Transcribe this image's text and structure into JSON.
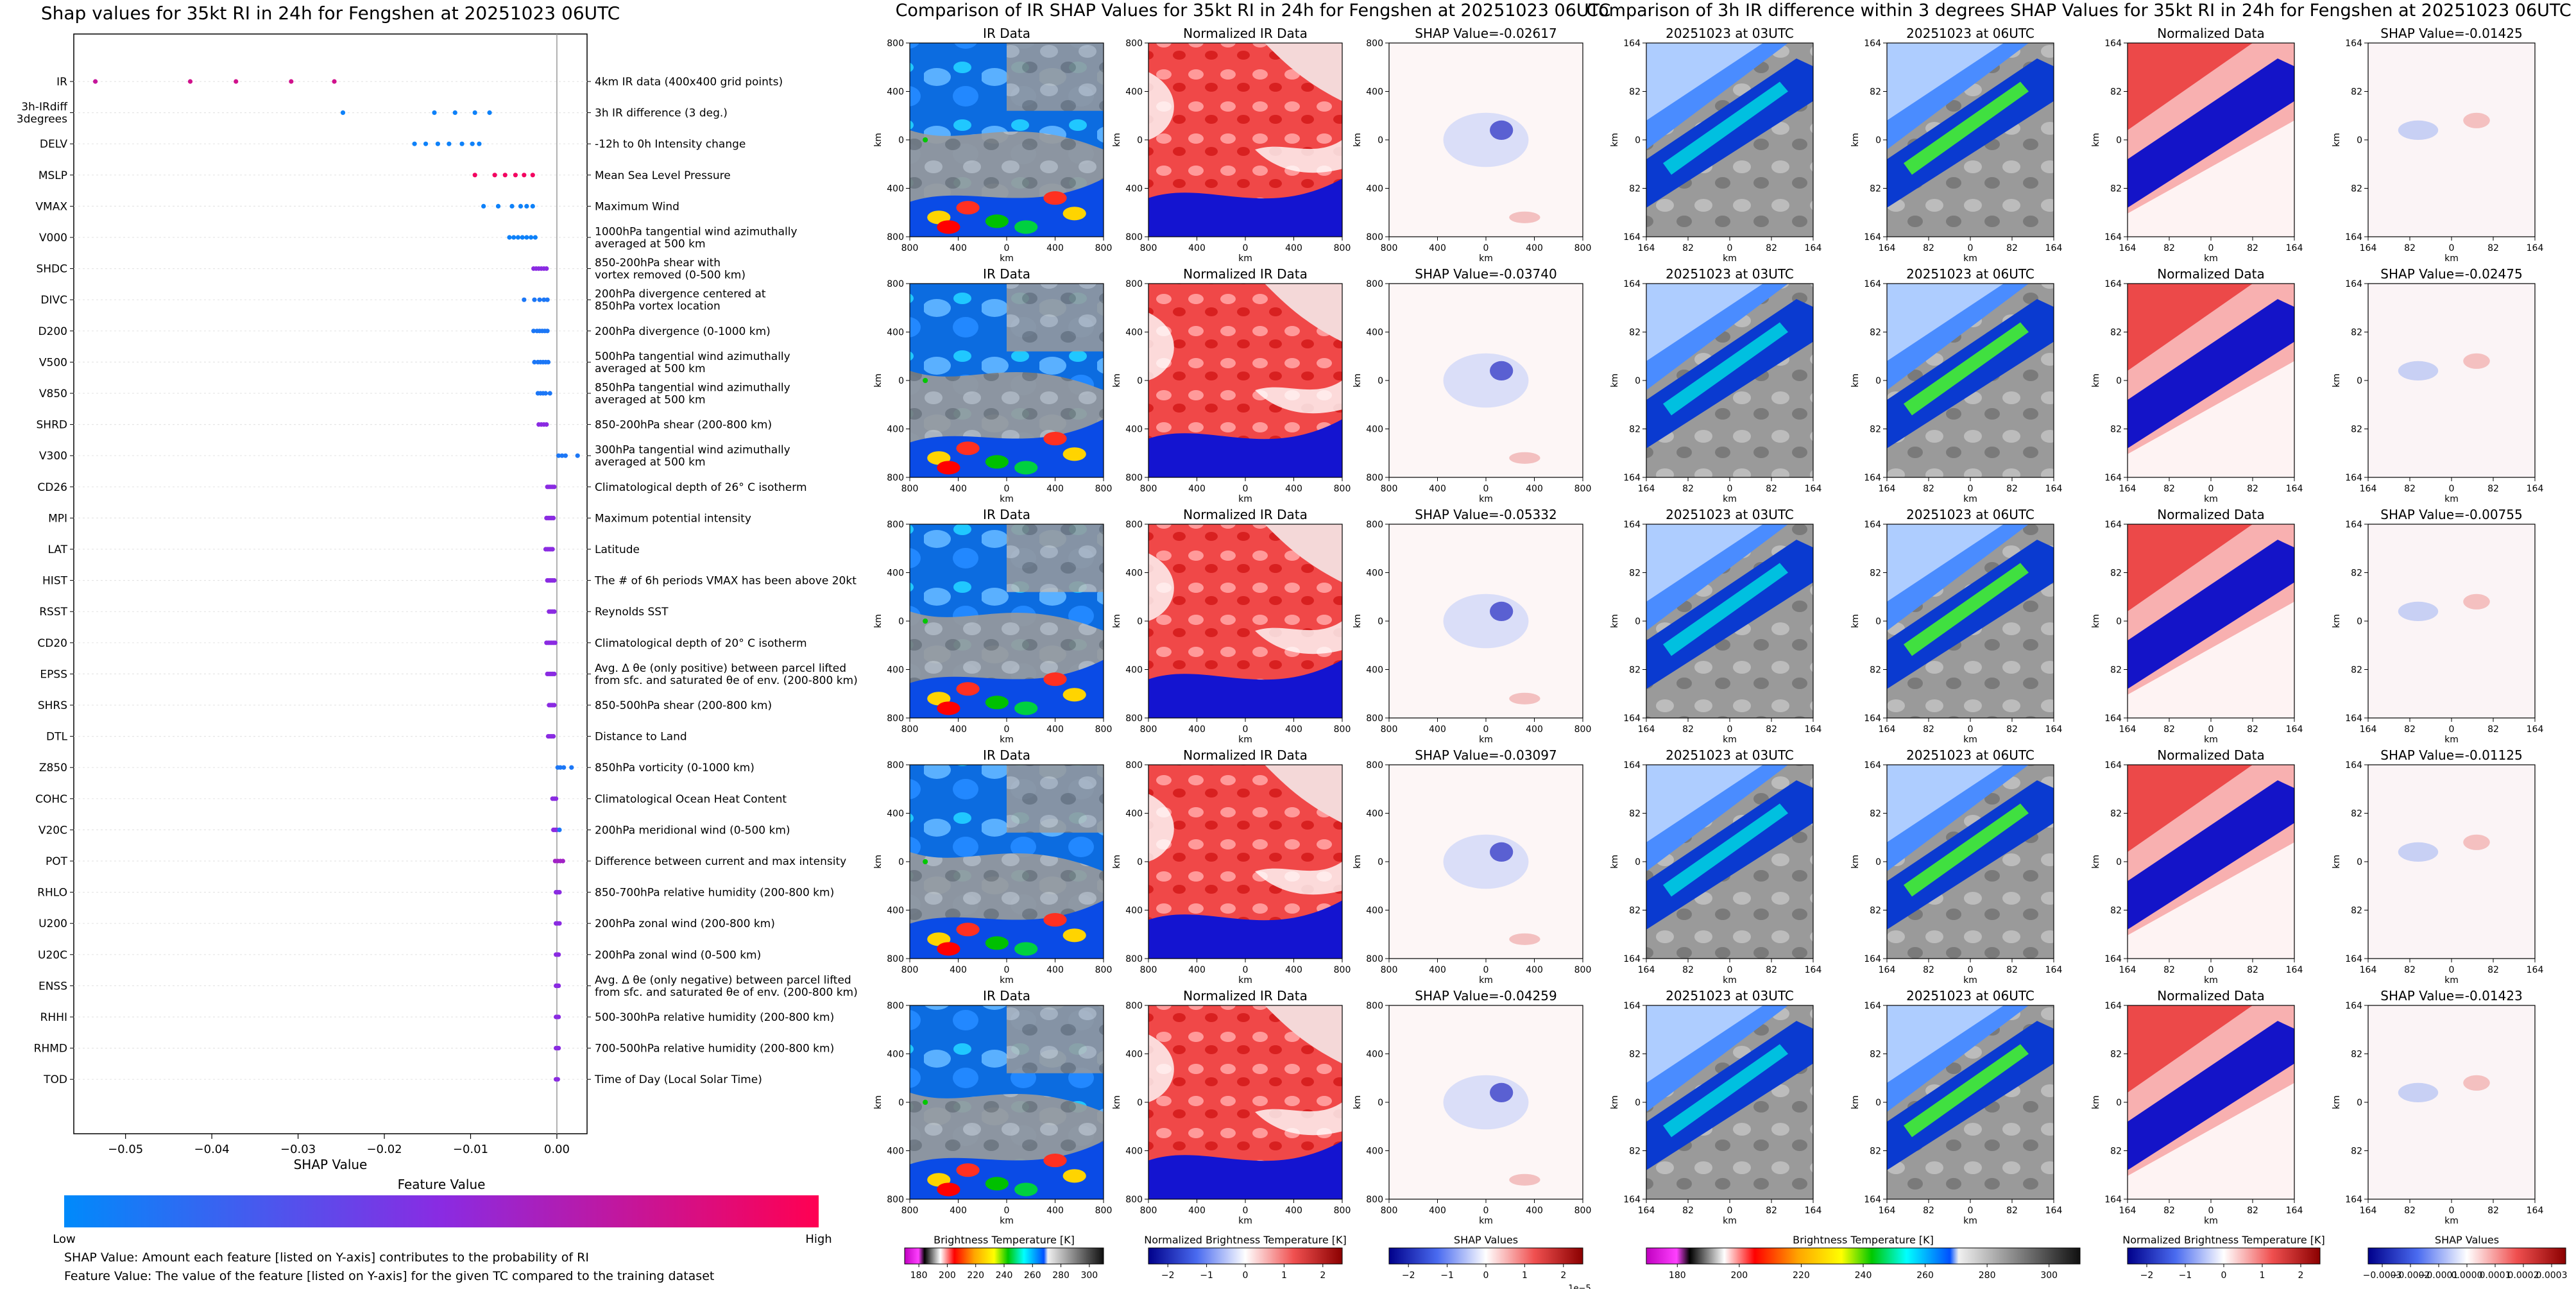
{
  "colors": {
    "feature_low": "#1e88e5",
    "feature_high": "#ff0d57",
    "ir_blue": "#0a4be6",
    "red": "#dd1010",
    "blue": "#1010cc",
    "grid": "#cccccc"
  },
  "left_panel": {
    "title": "Shap values for 35kt RI in 24h for Fengshen at 20251023 06UTC",
    "xlabel": "SHAP Value",
    "colorbar_title": "Feature Value",
    "colorbar_low": "Low",
    "colorbar_high": "High",
    "note1": "SHAP Value: Amount each feature [listed on Y-axis] contributes to the probability of RI",
    "note2": "Feature Value: The value of the feature [listed on Y-axis] for the given TC compared to the training dataset"
  },
  "chart_data": [
    {
      "type": "scatter",
      "title": "Shap values for 35kt RI in 24h for Fengshen at 20251023 06UTC",
      "xlabel": "SHAP Value",
      "xlim": [
        -0.056,
        0.0035
      ],
      "xticks": [
        -0.05,
        -0.04,
        -0.03,
        -0.02,
        -0.01,
        0.0
      ],
      "xtick_labels": [
        "−0.05",
        "−0.04",
        "−0.03",
        "−0.02",
        "−0.01",
        "0.00"
      ],
      "features": [
        {
          "name": "IR",
          "desc": [
            "4km IR data (400x400 grid points)"
          ],
          "points": [
            [
              -0.0535,
              0.75
            ],
            [
              -0.0425,
              0.8
            ],
            [
              -0.0372,
              0.8
            ],
            [
              -0.0308,
              0.8
            ],
            [
              -0.0258,
              0.8
            ]
          ]
        },
        {
          "name": "3h-IRdiff\n3degrees",
          "desc": [
            "3h IR difference (3 deg.)"
          ],
          "points": [
            [
              -0.0248,
              0.05
            ],
            [
              -0.0142,
              0.05
            ],
            [
              -0.0118,
              0.05
            ],
            [
              -0.0095,
              0.05
            ],
            [
              -0.0078,
              0.05
            ]
          ]
        },
        {
          "name": "DELV",
          "desc": [
            "-12h to 0h Intensity change"
          ],
          "points": [
            [
              -0.0165,
              0.05
            ],
            [
              -0.0152,
              0.05
            ],
            [
              -0.0138,
              0.05
            ],
            [
              -0.0125,
              0.05
            ],
            [
              -0.011,
              0.05
            ],
            [
              -0.0098,
              0.05
            ],
            [
              -0.009,
              0.05
            ]
          ]
        },
        {
          "name": "MSLP",
          "desc": [
            "Mean Sea Level Pressure"
          ],
          "points": [
            [
              -0.0095,
              0.95
            ],
            [
              -0.0072,
              0.95
            ],
            [
              -0.006,
              0.95
            ],
            [
              -0.0048,
              0.95
            ],
            [
              -0.0038,
              0.95
            ],
            [
              -0.0028,
              0.95
            ]
          ]
        },
        {
          "name": "VMAX",
          "desc": [
            "Maximum Wind"
          ],
          "points": [
            [
              -0.0085,
              0.05
            ],
            [
              -0.0068,
              0.05
            ],
            [
              -0.0052,
              0.05
            ],
            [
              -0.0042,
              0.05
            ],
            [
              -0.0035,
              0.05
            ],
            [
              -0.0028,
              0.05
            ]
          ]
        },
        {
          "name": "V000",
          "desc": [
            "1000hPa tangential wind azimuthally",
            "averaged at 500 km"
          ],
          "points": [
            [
              -0.0055,
              0.05
            ],
            [
              -0.005,
              0.05
            ],
            [
              -0.0045,
              0.05
            ],
            [
              -0.004,
              0.05
            ],
            [
              -0.0035,
              0.05
            ],
            [
              -0.003,
              0.05
            ],
            [
              -0.0025,
              0.05
            ]
          ]
        },
        {
          "name": "SHDC",
          "desc": [
            "850-200hPa shear with",
            "vortex removed (0-500 km)"
          ],
          "points": [
            [
              -0.0027,
              0.5
            ],
            [
              -0.0024,
              0.5
            ],
            [
              -0.0021,
              0.5
            ],
            [
              -0.0018,
              0.5
            ],
            [
              -0.0015,
              0.5
            ],
            [
              -0.0012,
              0.5
            ]
          ]
        },
        {
          "name": "DIVC",
          "desc": [
            "200hPa divergence centered at",
            "850hPa vortex location"
          ],
          "points": [
            [
              -0.0038,
              0.1
            ],
            [
              -0.0026,
              0.1
            ],
            [
              -0.002,
              0.1
            ],
            [
              -0.0015,
              0.1
            ],
            [
              -0.0011,
              0.1
            ]
          ]
        },
        {
          "name": "D200",
          "desc": [
            "200hPa divergence (0-1000 km)"
          ],
          "points": [
            [
              -0.0027,
              0.1
            ],
            [
              -0.0023,
              0.1
            ],
            [
              -0.002,
              0.1
            ],
            [
              -0.0017,
              0.1
            ],
            [
              -0.0014,
              0.1
            ],
            [
              -0.0011,
              0.1
            ]
          ]
        },
        {
          "name": "V500",
          "desc": [
            "500hPa tangential wind azimuthally",
            "averaged at 500 km"
          ],
          "points": [
            [
              -0.0026,
              0.1
            ],
            [
              -0.0022,
              0.1
            ],
            [
              -0.0019,
              0.1
            ],
            [
              -0.0016,
              0.1
            ],
            [
              -0.0013,
              0.1
            ],
            [
              -0.001,
              0.1
            ]
          ]
        },
        {
          "name": "V850",
          "desc": [
            "850hPa tangential wind azimuthally",
            "averaged at 500 km"
          ],
          "points": [
            [
              -0.0022,
              0.1
            ],
            [
              -0.0019,
              0.1
            ],
            [
              -0.0016,
              0.1
            ],
            [
              -0.0013,
              0.1
            ],
            [
              -0.0008,
              0.1
            ]
          ]
        },
        {
          "name": "SHRD",
          "desc": [
            "850-200hPa shear (200-800 km)"
          ],
          "points": [
            [
              -0.0021,
              0.5
            ],
            [
              -0.0018,
              0.5
            ],
            [
              -0.0015,
              0.5
            ],
            [
              -0.0012,
              0.5
            ]
          ]
        },
        {
          "name": "V300",
          "desc": [
            "300hPa tangential wind azimuthally",
            "averaged at 500 km"
          ],
          "points": [
            [
              0.0002,
              0.1
            ],
            [
              0.0006,
              0.1
            ],
            [
              0.001,
              0.1
            ],
            [
              0.0024,
              0.1
            ]
          ]
        },
        {
          "name": "CD26",
          "desc": [
            "Climatological depth of 26° C isotherm"
          ],
          "points": [
            [
              -0.0011,
              0.5
            ],
            [
              -0.0009,
              0.5
            ],
            [
              -0.0007,
              0.5
            ],
            [
              -0.0005,
              0.5
            ],
            [
              -0.0003,
              0.5
            ]
          ]
        },
        {
          "name": "MPI",
          "desc": [
            "Maximum potential intensity"
          ],
          "points": [
            [
              -0.0012,
              0.5
            ],
            [
              -0.001,
              0.5
            ],
            [
              -0.0008,
              0.5
            ],
            [
              -0.0006,
              0.5
            ],
            [
              -0.0004,
              0.5
            ]
          ]
        },
        {
          "name": "LAT",
          "desc": [
            "Latitude"
          ],
          "points": [
            [
              -0.0013,
              0.5
            ],
            [
              -0.0011,
              0.5
            ],
            [
              -0.0009,
              0.5
            ],
            [
              -0.0007,
              0.5
            ],
            [
              -0.0005,
              0.5
            ]
          ]
        },
        {
          "name": "HIST",
          "desc": [
            "The # of 6h periods VMAX has been above 20kt"
          ],
          "points": [
            [
              -0.0011,
              0.5
            ],
            [
              -0.0009,
              0.5
            ],
            [
              -0.0007,
              0.5
            ],
            [
              -0.0005,
              0.5
            ],
            [
              -0.0003,
              0.5
            ]
          ]
        },
        {
          "name": "RSST",
          "desc": [
            "Reynolds SST"
          ],
          "points": [
            [
              -0.0009,
              0.5
            ],
            [
              -0.0007,
              0.5
            ],
            [
              -0.0005,
              0.5
            ],
            [
              -0.0003,
              0.5
            ]
          ]
        },
        {
          "name": "CD20",
          "desc": [
            "Climatological depth of 20° C isotherm"
          ],
          "points": [
            [
              -0.0012,
              0.5
            ],
            [
              -0.001,
              0.5
            ],
            [
              -0.0008,
              0.5
            ],
            [
              -0.0006,
              0.5
            ],
            [
              -0.0004,
              0.5
            ],
            [
              -0.0002,
              0.5
            ]
          ]
        },
        {
          "name": "EPSS",
          "desc": [
            "Avg. Δ θe (only positive) between parcel lifted",
            "from sfc. and saturated θe of env. (200-800 km)"
          ],
          "points": [
            [
              -0.0011,
              0.5
            ],
            [
              -0.0009,
              0.5
            ],
            [
              -0.0007,
              0.5
            ],
            [
              -0.0005,
              0.5
            ],
            [
              -0.0003,
              0.5
            ]
          ]
        },
        {
          "name": "SHRS",
          "desc": [
            "850-500hPa shear (200-800 km)"
          ],
          "points": [
            [
              -0.0009,
              0.5
            ],
            [
              -0.0007,
              0.5
            ],
            [
              -0.0005,
              0.5
            ],
            [
              -0.0003,
              0.5
            ]
          ]
        },
        {
          "name": "DTL",
          "desc": [
            "Distance to Land"
          ],
          "points": [
            [
              -0.001,
              0.5
            ],
            [
              -0.0008,
              0.5
            ],
            [
              -0.0006,
              0.5
            ],
            [
              -0.0004,
              0.5
            ]
          ]
        },
        {
          "name": "Z850",
          "desc": [
            "850hPa vorticity (0-1000 km)"
          ],
          "points": [
            [
              0.0001,
              0.1
            ],
            [
              0.0004,
              0.1
            ],
            [
              0.0008,
              0.1
            ],
            [
              0.0017,
              0.1
            ]
          ]
        },
        {
          "name": "COHC",
          "desc": [
            "Climatological Ocean Heat Content"
          ],
          "points": [
            [
              -0.0005,
              0.5
            ],
            [
              -0.0003,
              0.5
            ],
            [
              -0.0001,
              0.5
            ]
          ]
        },
        {
          "name": "V20C",
          "desc": [
            "200hPa meridional wind (0-500 km)"
          ],
          "points": [
            [
              -0.0004,
              0.5
            ],
            [
              -0.0002,
              0.5
            ],
            [
              0.0,
              0.5
            ],
            [
              0.0003,
              0.1
            ]
          ]
        },
        {
          "name": "POT",
          "desc": [
            "Difference between current and max intensity"
          ],
          "points": [
            [
              -0.0002,
              0.6
            ],
            [
              0.0001,
              0.6
            ],
            [
              0.0004,
              0.6
            ],
            [
              0.0007,
              0.6
            ]
          ]
        },
        {
          "name": "RHLO",
          "desc": [
            "850-700hPa relative humidity (200-800 km)"
          ],
          "points": [
            [
              -0.0001,
              0.5
            ],
            [
              0.0001,
              0.5
            ],
            [
              0.0003,
              0.5
            ]
          ]
        },
        {
          "name": "U200",
          "desc": [
            "200hPa zonal wind (200-800 km)"
          ],
          "points": [
            [
              -0.0001,
              0.5
            ],
            [
              0.0001,
              0.5
            ],
            [
              0.0003,
              0.5
            ]
          ]
        },
        {
          "name": "U20C",
          "desc": [
            "200hPa zonal wind (0-500 km)"
          ],
          "points": [
            [
              -0.0001,
              0.5
            ],
            [
              0.0001,
              0.5
            ],
            [
              0.0002,
              0.5
            ]
          ]
        },
        {
          "name": "ENSS",
          "desc": [
            "Avg. Δ θe (only negative) between parcel lifted",
            "from sfc. and saturated θe of env. (200-800 km)"
          ],
          "points": [
            [
              -0.0001,
              0.5
            ],
            [
              0.0001,
              0.5
            ],
            [
              0.0002,
              0.5
            ]
          ]
        },
        {
          "name": "RHHI",
          "desc": [
            "500-300hPa relative humidity (200-800 km)"
          ],
          "points": [
            [
              -0.0001,
              0.5
            ],
            [
              0.0001,
              0.5
            ],
            [
              0.0002,
              0.5
            ]
          ]
        },
        {
          "name": "RHMD",
          "desc": [
            "700-500hPa relative humidity (200-800 km)"
          ],
          "points": [
            [
              -0.0001,
              0.5
            ],
            [
              0.0001,
              0.5
            ],
            [
              0.0002,
              0.5
            ]
          ]
        },
        {
          "name": "TOD",
          "desc": [
            "Time of Day (Local Solar Time)"
          ],
          "points": [
            [
              -0.0001,
              0.5
            ],
            [
              0.0001,
              0.5
            ]
          ]
        }
      ]
    },
    {
      "type": "heatmap",
      "title": "Comparison of IR SHAP Values for 35kt RI in 24h for Fengshen at 20251023 06UTC",
      "columns": [
        "IR Data",
        "Normalized IR Data",
        "SHAP Value"
      ],
      "shap_values": [
        "-0.02617",
        "-0.03740",
        "-0.05332",
        "-0.03097",
        "-0.04259"
      ],
      "ticks": [
        "800",
        "400",
        "0",
        "400",
        "800"
      ],
      "axis_label": "km",
      "colorbars": [
        {
          "label": "Brightness Temperature [K]",
          "ticks": [
            "180",
            "200",
            "220",
            "240",
            "260",
            "280",
            "300"
          ],
          "colormap": "ir"
        },
        {
          "label": "Normalized Brightness Temperature [K]",
          "ticks": [
            "−2",
            "−1",
            "0",
            "1",
            "2"
          ],
          "colormap": "bwr"
        },
        {
          "label": "SHAP Values",
          "ticks": [
            "−2",
            "−1",
            "0",
            "1",
            "2"
          ],
          "colormap": "bwr",
          "offset_text": "1e−5"
        }
      ]
    },
    {
      "type": "heatmap",
      "title": "Comparison of 3h IR difference within 3 degrees SHAP Values for 35kt RI in 24h for Fengshen at 20251023 06UTC",
      "columns": [
        "20251023 at 03UTC",
        "20251023 at 06UTC",
        "Normalized Data",
        "SHAP Value"
      ],
      "shap_values": [
        "-0.01425",
        "-0.02475",
        "-0.00755",
        "-0.01125",
        "-0.01423"
      ],
      "ticks": [
        "164",
        "82",
        "0",
        "82",
        "164"
      ],
      "axis_label": "km",
      "colorbars": [
        {
          "label": "Brightness Temperature [K]",
          "ticks": [
            "180",
            "200",
            "220",
            "240",
            "260",
            "280",
            "300"
          ],
          "colormap": "ir"
        },
        {
          "label": "Normalized Brightness Temperature [K]",
          "ticks": [
            "−2",
            "−1",
            "0",
            "1",
            "2"
          ],
          "colormap": "bwr"
        },
        {
          "label": "SHAP Values",
          "ticks": [
            "−0.0003",
            "−0.0002",
            "−0.0001",
            "0.0000",
            "0.0001",
            "0.0002",
            "0.0003"
          ],
          "colormap": "bwr"
        }
      ]
    }
  ]
}
